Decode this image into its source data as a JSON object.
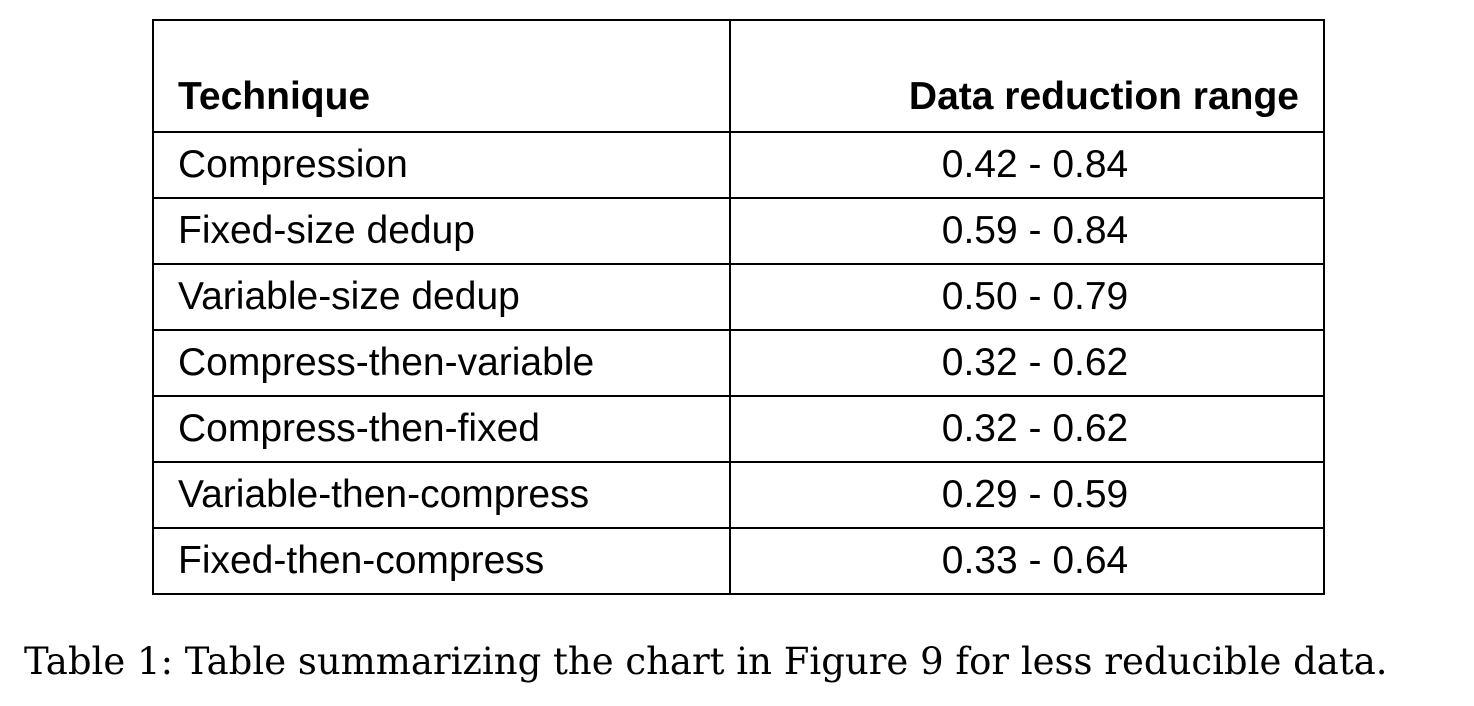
{
  "table": {
    "headers": {
      "technique": "Technique",
      "range": "Data reduction range"
    },
    "rows": [
      {
        "technique": "Compression",
        "range": "0.42 - 0.84"
      },
      {
        "technique": "Fixed-size dedup",
        "range": "0.59 - 0.84"
      },
      {
        "technique": "Variable-size dedup",
        "range": "0.50 - 0.79"
      },
      {
        "technique": "Compress-then-variable",
        "range": "0.32 - 0.62"
      },
      {
        "technique": "Compress-then-fixed",
        "range": "0.32 - 0.62"
      },
      {
        "technique": "Variable-then-compress",
        "range": "0.29 - 0.59"
      },
      {
        "technique": "Fixed-then-compress",
        "range": "0.33 - 0.64"
      }
    ]
  },
  "caption": "Table 1: Table summarizing the chart in Figure 9 for less reducible data."
}
